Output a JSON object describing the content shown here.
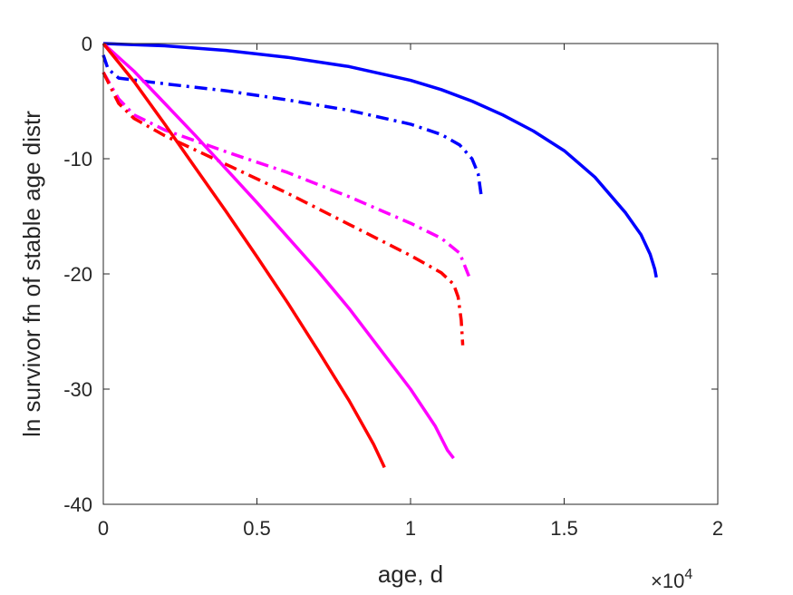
{
  "chart_data": {
    "type": "line",
    "title": "",
    "xlabel": "age, d",
    "ylabel": "ln survivor fn of stable age distr",
    "x_exponent_label": "×10",
    "x_exponent_power": "4",
    "xlim": [
      0,
      20000
    ],
    "ylim": [
      -40,
      0
    ],
    "xticks": [
      0,
      5000,
      10000,
      15000,
      20000
    ],
    "xtick_labels": [
      "0",
      "0.5",
      "1",
      "1.5",
      "2"
    ],
    "yticks": [
      0,
      -10,
      -20,
      -30,
      -40
    ],
    "ytick_labels": [
      "0",
      "-10",
      "-20",
      "-30",
      "-40"
    ],
    "grid": false,
    "legend": "none",
    "series": [
      {
        "color": "#0000ff",
        "style": "solid",
        "points": [
          [
            0,
            0
          ],
          [
            2000,
            -0.2
          ],
          [
            4000,
            -0.6
          ],
          [
            6000,
            -1.2
          ],
          [
            8000,
            -2.0
          ],
          [
            10000,
            -3.2
          ],
          [
            11000,
            -4.0
          ],
          [
            12000,
            -5.0
          ],
          [
            13000,
            -6.2
          ],
          [
            14000,
            -7.6
          ],
          [
            15000,
            -9.3
          ],
          [
            16000,
            -11.6
          ],
          [
            17000,
            -14.7
          ],
          [
            17500,
            -16.6
          ],
          [
            17800,
            -18.3
          ],
          [
            17950,
            -19.6
          ],
          [
            18000,
            -20.3
          ]
        ]
      },
      {
        "color": "#0000ff",
        "style": "dashdot",
        "points": [
          [
            0,
            -1.0
          ],
          [
            150,
            -2.2
          ],
          [
            500,
            -3.0
          ],
          [
            2000,
            -3.5
          ],
          [
            4000,
            -4.1
          ],
          [
            6000,
            -4.9
          ],
          [
            8000,
            -5.8
          ],
          [
            10000,
            -7.0
          ],
          [
            11000,
            -7.9
          ],
          [
            11600,
            -8.8
          ],
          [
            12000,
            -10.0
          ],
          [
            12200,
            -11.3
          ],
          [
            12300,
            -13.2
          ]
        ]
      },
      {
        "color": "#ff00ff",
        "style": "dashdot",
        "points": [
          [
            0,
            -2.5
          ],
          [
            500,
            -4.8
          ],
          [
            1000,
            -6.2
          ],
          [
            2000,
            -7.5
          ],
          [
            4000,
            -9.4
          ],
          [
            6000,
            -11.2
          ],
          [
            8000,
            -13.3
          ],
          [
            10000,
            -15.6
          ],
          [
            11000,
            -16.9
          ],
          [
            11600,
            -18.2
          ],
          [
            11900,
            -20.2
          ]
        ]
      },
      {
        "color": "#ff0000",
        "style": "dashdot",
        "points": [
          [
            0,
            -2.5
          ],
          [
            500,
            -5.2
          ],
          [
            1000,
            -6.5
          ],
          [
            2000,
            -8.0
          ],
          [
            4000,
            -10.5
          ],
          [
            6000,
            -13.0
          ],
          [
            8000,
            -15.7
          ],
          [
            10000,
            -18.4
          ],
          [
            11000,
            -19.9
          ],
          [
            11400,
            -20.9
          ],
          [
            11550,
            -22.0
          ],
          [
            11650,
            -24.0
          ],
          [
            11700,
            -26.2
          ]
        ]
      },
      {
        "color": "#ff00ff",
        "style": "solid",
        "points": [
          [
            0,
            0
          ],
          [
            1000,
            -2.4
          ],
          [
            2000,
            -5.2
          ],
          [
            3000,
            -8.0
          ],
          [
            4000,
            -10.9
          ],
          [
            5000,
            -13.8
          ],
          [
            6000,
            -16.8
          ],
          [
            7000,
            -19.8
          ],
          [
            8000,
            -23.0
          ],
          [
            9000,
            -26.5
          ],
          [
            10000,
            -30.0
          ],
          [
            10800,
            -33.2
          ],
          [
            11200,
            -35.3
          ],
          [
            11400,
            -36.0
          ]
        ]
      },
      {
        "color": "#ff0000",
        "style": "solid",
        "points": [
          [
            0,
            0
          ],
          [
            1000,
            -3.3
          ],
          [
            2000,
            -7.0
          ],
          [
            3000,
            -10.8
          ],
          [
            4000,
            -14.6
          ],
          [
            5000,
            -18.5
          ],
          [
            6000,
            -22.5
          ],
          [
            7000,
            -26.7
          ],
          [
            8000,
            -31.0
          ],
          [
            8800,
            -34.8
          ],
          [
            9100,
            -36.5
          ],
          [
            9150,
            -36.8
          ]
        ]
      }
    ]
  }
}
